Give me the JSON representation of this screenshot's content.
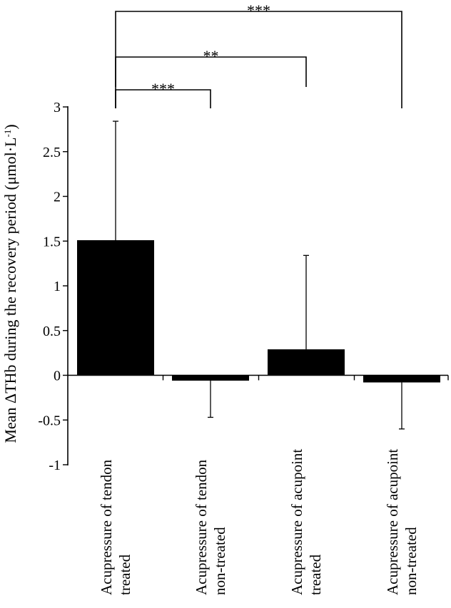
{
  "chart_data": {
    "type": "bar",
    "title": "",
    "ylabel_main": "Mean ΔTHb during the recovery period (μmol·L",
    "ylabel_sup": "-1",
    "ylabel_close": ")",
    "xlabel": "",
    "ylim": [
      -1,
      3
    ],
    "yticks": [
      3,
      2.5,
      2,
      1.5,
      1,
      0.5,
      0,
      -0.5,
      -1
    ],
    "ytick_labels": [
      "3",
      "2.5",
      "2",
      "1.5",
      "1",
      "0.5",
      "0",
      "-0.5",
      "-1"
    ],
    "categories": [
      [
        "Acupressure of tendon",
        "treated"
      ],
      [
        "Acupressure of tendon",
        "non-treated"
      ],
      [
        "Acupressure of acupoint",
        "treated"
      ],
      [
        "Acupressure of acupoint",
        "non-treated"
      ]
    ],
    "values": [
      1.51,
      -0.06,
      0.29,
      -0.08
    ],
    "errors": [
      1.33,
      0.41,
      1.05,
      0.52
    ],
    "bar_color": "#000000",
    "grid": false,
    "legend": "none",
    "significance": [
      {
        "from": 0,
        "to": 1,
        "label": "***"
      },
      {
        "from": 0,
        "to": 2,
        "label": "**"
      },
      {
        "from": 0,
        "to": 3,
        "label": "***"
      }
    ]
  }
}
